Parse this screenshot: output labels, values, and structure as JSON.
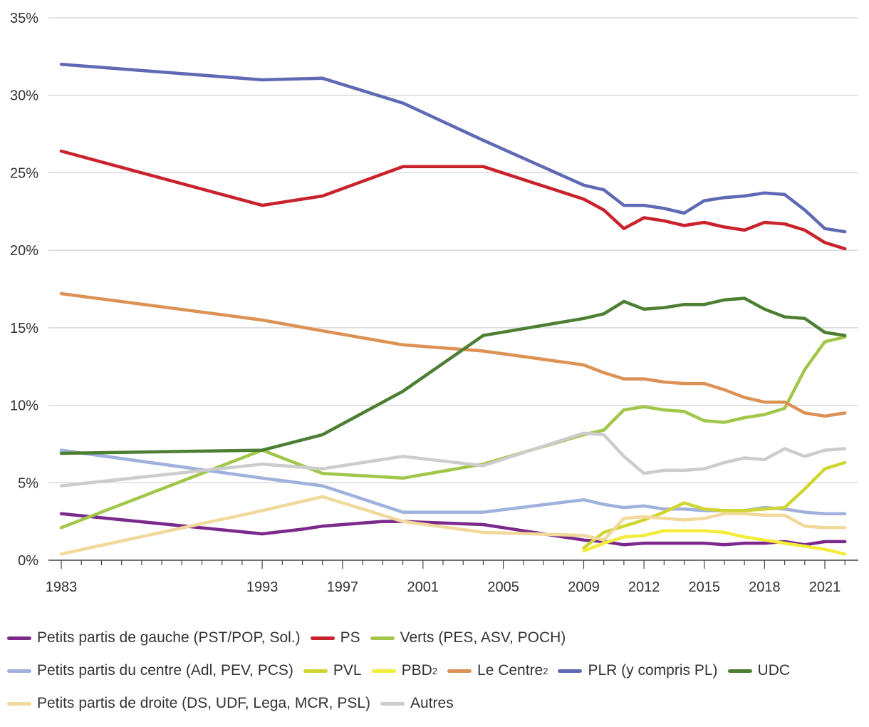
{
  "chart_data": {
    "type": "line",
    "title": "",
    "xlabel": "",
    "ylabel": "",
    "ylim": [
      0,
      35
    ],
    "yticks": [
      0,
      5,
      10,
      15,
      20,
      25,
      30,
      35
    ],
    "ytick_labels": [
      "0%",
      "5%",
      "10%",
      "15%",
      "20%",
      "25%",
      "30%",
      "35%"
    ],
    "xlim": [
      1983,
      2022
    ],
    "xticks": [
      1983,
      1993,
      1997,
      2001,
      2005,
      2009,
      2012,
      2015,
      2018,
      2021
    ],
    "grid": "horizontal",
    "legend_position": "bottom",
    "series": [
      {
        "name": "Petits partis de gauche (PST/POP, Sol.)",
        "color": "#7b2a8c",
        "x": [
          1983,
          1993,
          1995,
          1996,
          1997,
          1998,
          1999,
          2000,
          2001,
          2002,
          2003,
          2004,
          2005,
          2006,
          2007,
          2008,
          2009,
          2010,
          2011,
          2012,
          2013,
          2014,
          2015,
          2016,
          2017,
          2018,
          2019,
          2020,
          2021,
          2022
        ],
        "y": [
          3.0,
          1.7,
          2.0,
          2.2,
          2.3,
          2.4,
          2.5,
          2.5,
          2.45,
          2.4,
          2.35,
          2.3,
          2.1,
          1.9,
          1.7,
          1.5,
          1.3,
          1.2,
          1.0,
          1.1,
          1.1,
          1.1,
          1.1,
          1.0,
          1.1,
          1.1,
          1.2,
          1.0,
          1.2,
          1.2
        ]
      },
      {
        "name": "PS",
        "color": "#c8232c",
        "x": [
          1983,
          1993,
          1996,
          2000,
          2004,
          2009,
          2010,
          2011,
          2012,
          2013,
          2014,
          2015,
          2016,
          2017,
          2018,
          2019,
          2020,
          2021,
          2022
        ],
        "y": [
          26.4,
          22.9,
          23.5,
          25.4,
          25.4,
          23.3,
          22.6,
          21.4,
          22.1,
          21.9,
          21.6,
          21.8,
          21.5,
          21.3,
          21.8,
          21.7,
          21.3,
          20.5,
          20.1
        ]
      },
      {
        "name": "Verts (PES, ASV, POCH)",
        "color": "#a2c64a",
        "x": [
          1983,
          1993,
          1996,
          2000,
          2004,
          2009,
          2010,
          2011,
          2012,
          2013,
          2014,
          2015,
          2016,
          2017,
          2018,
          2019,
          2020,
          2021,
          2022
        ],
        "y": [
          2.1,
          7.1,
          5.6,
          5.3,
          6.2,
          8.1,
          8.4,
          9.7,
          9.9,
          9.7,
          9.6,
          9.0,
          8.9,
          9.2,
          9.4,
          9.8,
          12.3,
          14.1,
          14.4
        ]
      },
      {
        "name": "Petits partis du centre (Adl, PEV, PCS)",
        "color": "#9fb1dc",
        "x": [
          1983,
          1993,
          1996,
          2000,
          2004,
          2009,
          2010,
          2011,
          2012,
          2013,
          2014,
          2015,
          2016,
          2017,
          2018,
          2019,
          2020,
          2021,
          2022
        ],
        "y": [
          7.1,
          5.3,
          4.8,
          3.1,
          3.1,
          3.9,
          3.6,
          3.4,
          3.5,
          3.3,
          3.3,
          3.2,
          3.2,
          3.2,
          3.4,
          3.3,
          3.1,
          3.0,
          3.0
        ]
      },
      {
        "name": "PVL",
        "color": "#cfd631",
        "x": [
          2009,
          2010,
          2011,
          2012,
          2013,
          2014,
          2015,
          2016,
          2017,
          2018,
          2019,
          2020,
          2021,
          2022
        ],
        "y": [
          0.8,
          1.8,
          2.2,
          2.6,
          3.1,
          3.7,
          3.3,
          3.2,
          3.2,
          3.3,
          3.4,
          4.6,
          5.9,
          6.3
        ]
      },
      {
        "name": "PBD",
        "color": "#f2ec3a",
        "x": [
          2009,
          2010,
          2011,
          2012,
          2013,
          2014,
          2015,
          2016,
          2017,
          2018,
          2019,
          2020,
          2021,
          2022
        ],
        "y": [
          0.6,
          1.1,
          1.5,
          1.6,
          1.9,
          1.9,
          1.9,
          1.8,
          1.5,
          1.3,
          1.1,
          0.9,
          0.7,
          0.4
        ]
      },
      {
        "name": "Le Centre",
        "color": "#dc9254",
        "x": [
          1983,
          1993,
          1996,
          2000,
          2004,
          2009,
          2010,
          2011,
          2012,
          2013,
          2014,
          2015,
          2016,
          2017,
          2018,
          2019,
          2020,
          2021,
          2022
        ],
        "y": [
          17.2,
          15.5,
          14.8,
          13.9,
          13.5,
          12.6,
          12.1,
          11.7,
          11.7,
          11.5,
          11.4,
          11.4,
          11.0,
          10.5,
          10.2,
          10.2,
          9.5,
          9.3,
          9.5
        ]
      },
      {
        "name": "PLR (y compris PL)",
        "color": "#5f69b4",
        "x": [
          1983,
          1993,
          1996,
          2000,
          2004,
          2009,
          2010,
          2011,
          2012,
          2013,
          2014,
          2015,
          2016,
          2017,
          2018,
          2019,
          2020,
          2021,
          2022
        ],
        "y": [
          32.0,
          31.0,
          31.1,
          29.5,
          27.1,
          24.2,
          23.9,
          22.9,
          22.9,
          22.7,
          22.4,
          23.2,
          23.4,
          23.5,
          23.7,
          23.6,
          22.6,
          21.4,
          21.2
        ]
      },
      {
        "name": "UDC",
        "color": "#4d7f33",
        "x": [
          1983,
          1993,
          1996,
          2000,
          2004,
          2009,
          2010,
          2011,
          2012,
          2013,
          2014,
          2015,
          2016,
          2017,
          2018,
          2019,
          2020,
          2021,
          2022
        ],
        "y": [
          6.9,
          7.1,
          8.1,
          10.9,
          14.5,
          15.6,
          15.9,
          16.7,
          16.2,
          16.3,
          16.5,
          16.5,
          16.8,
          16.9,
          16.2,
          15.7,
          15.6,
          14.7,
          14.5
        ]
      },
      {
        "name": "Petits partis de droite (DS, UDF, Lega, MCR, PSL)",
        "color": "#f1d89b",
        "x": [
          1983,
          1993,
          1996,
          2000,
          2004,
          2009,
          2010,
          2011,
          2012,
          2013,
          2014,
          2015,
          2016,
          2017,
          2018,
          2019,
          2020,
          2021,
          2022
        ],
        "y": [
          0.4,
          3.2,
          4.1,
          2.5,
          1.8,
          1.6,
          1.3,
          2.7,
          2.8,
          2.7,
          2.6,
          2.7,
          3.0,
          3.0,
          2.9,
          2.9,
          2.2,
          2.1,
          2.1
        ]
      },
      {
        "name": "Autres",
        "color": "#cccccc",
        "x": [
          1983,
          1993,
          1996,
          2000,
          2004,
          2009,
          2010,
          2011,
          2012,
          2013,
          2014,
          2015,
          2016,
          2017,
          2018,
          2019,
          2020,
          2021,
          2022
        ],
        "y": [
          4.8,
          6.2,
          5.9,
          6.7,
          6.1,
          8.2,
          8.1,
          6.7,
          5.6,
          5.8,
          5.8,
          5.9,
          6.3,
          6.6,
          6.5,
          7.2,
          6.7,
          7.1,
          7.2
        ]
      }
    ]
  },
  "legend": {
    "rows": [
      [
        {
          "label": "Petits partis de gauche (PST/POP, Sol.)",
          "sup": "",
          "color": "#7b2a8c"
        },
        {
          "label": "PS",
          "sup": "",
          "color": "#c8232c"
        },
        {
          "label": "Verts (PES, ASV, POCH)",
          "sup": "",
          "color": "#a2c64a"
        }
      ],
      [
        {
          "label": "Petits partis du centre (Adl, PEV, PCS)",
          "sup": "",
          "color": "#9fb1dc"
        },
        {
          "label": "PVL",
          "sup": "",
          "color": "#cfd631"
        },
        {
          "label": "PBD",
          "sup": "2",
          "color": "#f2ec3a"
        },
        {
          "label": "Le Centre",
          "sup": "2",
          "color": "#dc9254"
        },
        {
          "label": "PLR (y compris PL)",
          "sup": "",
          "color": "#5f69b4"
        },
        {
          "label": "UDC",
          "sup": "",
          "color": "#4d7f33"
        }
      ],
      [
        {
          "label": "Petits partis de droite (DS, UDF, Lega, MCR, PSL)",
          "sup": "",
          "color": "#f1d89b"
        },
        {
          "label": "Autres",
          "sup": "",
          "color": "#cccccc"
        }
      ]
    ]
  }
}
